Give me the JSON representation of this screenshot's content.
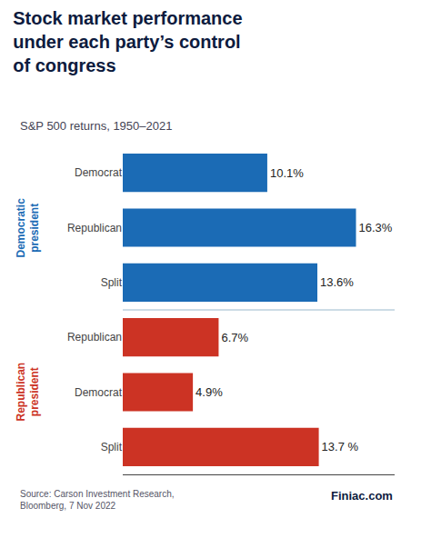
{
  "chart_data": {
    "type": "bar",
    "orientation": "horizontal",
    "title": "Stock market performance\nunder each party’s control\nof congress",
    "subtitle": "S&P 500 returns, 1950–2021",
    "categories": [
      "Democrat",
      "Republican",
      "Split",
      "Republican",
      "Democrat",
      "Split"
    ],
    "series": [
      {
        "name": "Democratic\npresident",
        "color": "#1b6bb5",
        "values": [
          10.1,
          16.3,
          13.6,
          null,
          null,
          null
        ],
        "value_labels": [
          "10.1%",
          "16.3%",
          "13.6%",
          null,
          null,
          null
        ]
      },
      {
        "name": "Republican\npresident",
        "color": "#cc3324",
        "values": [
          null,
          null,
          null,
          6.7,
          4.9,
          13.7
        ],
        "value_labels": [
          null,
          null,
          null,
          "6.7%",
          "4.9%",
          "13.7 %"
        ]
      }
    ],
    "xlim": [
      0,
      19
    ],
    "xticks": [],
    "grid": false,
    "data_labels": true,
    "tick_labels": "y",
    "annotations": [
      "Source: Carson Investment Research,\nBloomberg, 7 Nov 2022",
      "Finiac.com"
    ]
  }
}
